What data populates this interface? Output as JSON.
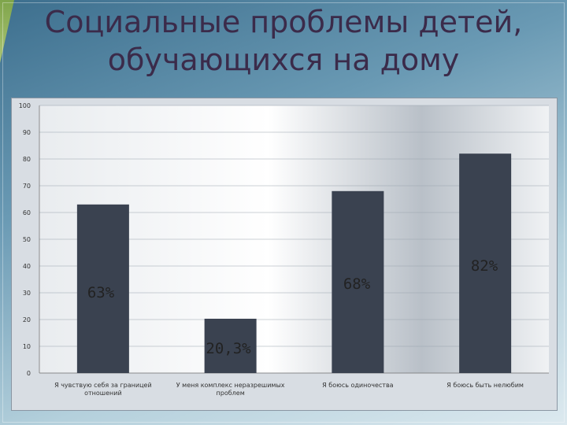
{
  "title": "Социальные проблемы детей, обучающихся на дому",
  "colors": {
    "bar": "#3a4250",
    "title": "#3b2b4a"
  },
  "chart_data": {
    "type": "bar",
    "title": "",
    "xlabel": "",
    "ylabel": "",
    "ylim": [
      0,
      100
    ],
    "yticks": [
      0,
      10,
      20,
      30,
      40,
      50,
      60,
      70,
      80,
      90,
      100
    ],
    "grid": true,
    "legend": "none",
    "categories": [
      [
        "Я чувствую себя за границей",
        "отношений"
      ],
      [
        "У меня комплекс неразрешимых",
        "проблем"
      ],
      [
        "Я боюсь одиночества"
      ],
      [
        "Я боюсь быть нелюбим"
      ]
    ],
    "values": [
      63,
      20.3,
      68,
      82
    ],
    "data_labels": [
      "63%",
      "20,3%",
      "68%",
      "82%"
    ]
  }
}
